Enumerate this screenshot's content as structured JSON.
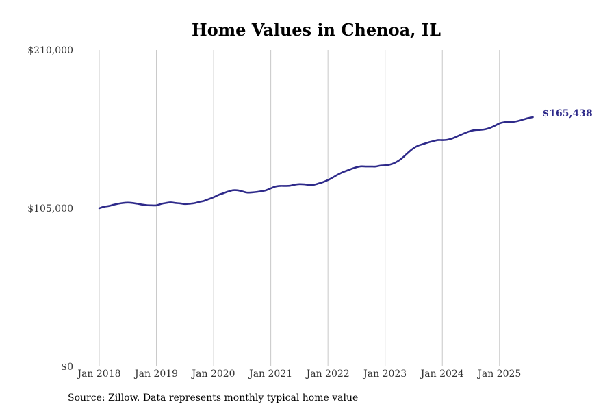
{
  "chart_data": {
    "type": "line",
    "title": "Home Values in Chenoa, IL",
    "xlabel": "",
    "ylabel": "",
    "ylim": [
      0,
      210000
    ],
    "xlim": [
      "2018-01",
      "2025-08"
    ],
    "grid": "vertical",
    "y_ticks": [
      "$210,000",
      "$105,000",
      "$0"
    ],
    "y_tick_values": [
      210000,
      105000,
      0
    ],
    "x_ticks": [
      "Jan 2018",
      "Jan 2019",
      "Jan 2020",
      "Jan 2021",
      "Jan 2022",
      "Jan 2023",
      "Jan 2024",
      "Jan 2025"
    ],
    "x_tick_values": [
      "2018-01",
      "2019-01",
      "2020-01",
      "2021-01",
      "2022-01",
      "2023-01",
      "2024-01",
      "2025-01"
    ],
    "end_label": "$165,438",
    "line_color": "#2e2a8a",
    "series": [
      {
        "x": [
          "2018-01",
          "2018-02",
          "2018-03",
          "2018-04",
          "2018-05",
          "2018-06",
          "2018-07",
          "2018-08",
          "2018-09",
          "2018-10",
          "2018-11",
          "2018-12",
          "2019-01",
          "2019-02",
          "2019-03",
          "2019-04",
          "2019-05",
          "2019-06",
          "2019-07",
          "2019-08",
          "2019-09",
          "2019-10",
          "2019-11",
          "2019-12",
          "2020-01",
          "2020-02",
          "2020-03",
          "2020-04",
          "2020-05",
          "2020-06",
          "2020-07",
          "2020-08",
          "2020-09",
          "2020-10",
          "2020-11",
          "2020-12",
          "2021-01",
          "2021-02",
          "2021-03",
          "2021-04",
          "2021-05",
          "2021-06",
          "2021-07",
          "2021-08",
          "2021-09",
          "2021-10",
          "2021-11",
          "2021-12",
          "2022-01",
          "2022-02",
          "2022-03",
          "2022-04",
          "2022-05",
          "2022-06",
          "2022-07",
          "2022-08",
          "2022-09",
          "2022-10",
          "2022-11",
          "2022-12",
          "2023-01",
          "2023-02",
          "2023-03",
          "2023-04",
          "2023-05",
          "2023-06",
          "2023-07",
          "2023-08",
          "2023-09",
          "2023-10",
          "2023-11",
          "2023-12",
          "2024-01",
          "2024-02",
          "2024-03",
          "2024-04",
          "2024-05",
          "2024-06",
          "2024-07",
          "2024-08",
          "2024-09",
          "2024-10",
          "2024-11",
          "2024-12",
          "2025-01",
          "2025-02",
          "2025-03",
          "2025-04",
          "2025-05",
          "2025-06",
          "2025-07",
          "2025-08"
        ],
        "values": [
          105000,
          106000,
          106500,
          107300,
          108000,
          108500,
          108700,
          108500,
          108000,
          107400,
          107000,
          106900,
          106900,
          107900,
          108500,
          108900,
          108500,
          108200,
          107800,
          108000,
          108400,
          109200,
          109900,
          111100,
          112300,
          113800,
          114900,
          116000,
          116900,
          116900,
          116200,
          115400,
          115500,
          115800,
          116300,
          116900,
          118200,
          119400,
          119800,
          119800,
          119900,
          120600,
          121000,
          120900,
          120500,
          120600,
          121400,
          122400,
          123700,
          125400,
          127200,
          128800,
          130000,
          131200,
          132200,
          132800,
          132700,
          132700,
          132700,
          133300,
          133500,
          134000,
          135100,
          136900,
          139500,
          142400,
          144900,
          146600,
          147600,
          148600,
          149400,
          150200,
          150200,
          150400,
          151200,
          152500,
          153900,
          155200,
          156300,
          156900,
          157000,
          157400,
          158300,
          159700,
          161300,
          162100,
          162300,
          162400,
          163000,
          163900,
          164800,
          165438
        ]
      }
    ]
  },
  "source_note": "Source: Zillow. Data represents monthly typical home value"
}
